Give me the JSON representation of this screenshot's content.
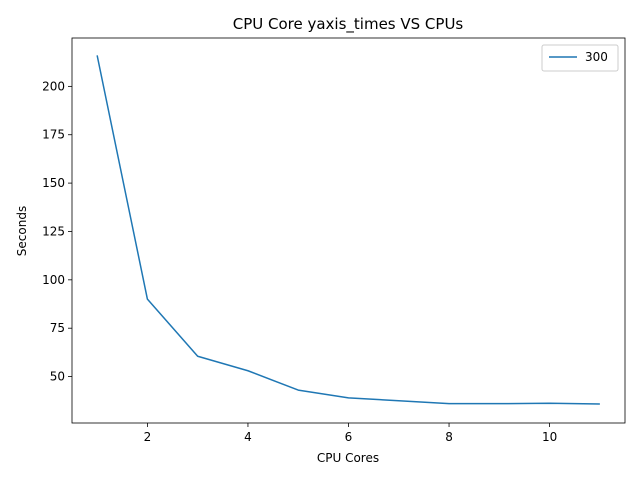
{
  "chart_data": {
    "type": "line",
    "title": "CPU Core yaxis_times VS CPUs",
    "xlabel": "CPU Cores",
    "ylabel": "Seconds",
    "xlim": [
      0.5,
      11.5
    ],
    "ylim": [
      26.0,
      225.0
    ],
    "xticks": [
      2,
      4,
      6,
      8,
      10
    ],
    "yticks": [
      50,
      75,
      100,
      125,
      150,
      175,
      200
    ],
    "grid": false,
    "legend_position": "upper right",
    "series": [
      {
        "name": "300",
        "color": "#1f77b4",
        "x": [
          1,
          2,
          3,
          4,
          5,
          6,
          7,
          8,
          9,
          10,
          11
        ],
        "y": [
          216.0,
          90.0,
          60.5,
          53.0,
          43.0,
          39.0,
          37.5,
          36.0,
          36.0,
          36.2,
          35.8
        ]
      }
    ]
  }
}
